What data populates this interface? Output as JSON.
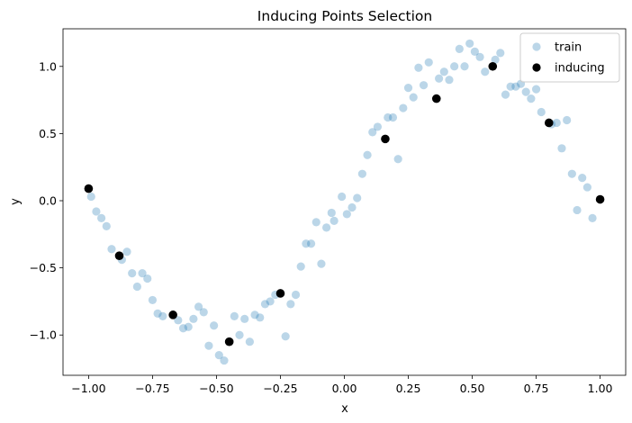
{
  "chart_data": {
    "type": "scatter",
    "title": "Inducing Points Selection",
    "xlabel": "x",
    "ylabel": "y",
    "xlim": [
      -1.1,
      1.1
    ],
    "ylim": [
      -1.3,
      1.28
    ],
    "x_ticks": [
      -1.0,
      -0.75,
      -0.5,
      -0.25,
      0.0,
      0.25,
      0.5,
      0.75,
      1.0
    ],
    "x_tick_labels": [
      "−1.00",
      "−0.75",
      "−0.50",
      "−0.25",
      "0.00",
      "0.25",
      "0.50",
      "0.75",
      "1.00"
    ],
    "y_ticks": [
      -1.0,
      -0.5,
      0.0,
      0.5,
      1.0
    ],
    "y_tick_labels": [
      "−1.0",
      "−0.5",
      "0.0",
      "0.5",
      "1.0"
    ],
    "grid": false,
    "legend_position": "top-right",
    "series": [
      {
        "name": "train",
        "color": "#1f77b4",
        "alpha": 0.3,
        "points": [
          [
            -0.99,
            0.03
          ],
          [
            -0.97,
            -0.08
          ],
          [
            -0.95,
            -0.13
          ],
          [
            -0.93,
            -0.19
          ],
          [
            -0.91,
            -0.36
          ],
          [
            -0.87,
            -0.44
          ],
          [
            -0.85,
            -0.38
          ],
          [
            -0.83,
            -0.54
          ],
          [
            -0.81,
            -0.64
          ],
          [
            -0.79,
            -0.54
          ],
          [
            -0.77,
            -0.58
          ],
          [
            -0.75,
            -0.74
          ],
          [
            -0.73,
            -0.84
          ],
          [
            -0.71,
            -0.86
          ],
          [
            -0.65,
            -0.89
          ],
          [
            -0.63,
            -0.95
          ],
          [
            -0.61,
            -0.94
          ],
          [
            -0.59,
            -0.88
          ],
          [
            -0.57,
            -0.79
          ],
          [
            -0.55,
            -0.83
          ],
          [
            -0.53,
            -1.08
          ],
          [
            -0.51,
            -0.93
          ],
          [
            -0.49,
            -1.15
          ],
          [
            -0.47,
            -1.19
          ],
          [
            -0.43,
            -0.86
          ],
          [
            -0.41,
            -1.0
          ],
          [
            -0.39,
            -0.88
          ],
          [
            -0.37,
            -1.05
          ],
          [
            -0.35,
            -0.85
          ],
          [
            -0.33,
            -0.87
          ],
          [
            -0.31,
            -0.77
          ],
          [
            -0.29,
            -0.75
          ],
          [
            -0.27,
            -0.7
          ],
          [
            -0.23,
            -1.01
          ],
          [
            -0.21,
            -0.77
          ],
          [
            -0.19,
            -0.7
          ],
          [
            -0.17,
            -0.49
          ],
          [
            -0.15,
            -0.32
          ],
          [
            -0.13,
            -0.32
          ],
          [
            -0.11,
            -0.16
          ],
          [
            -0.09,
            -0.47
          ],
          [
            -0.07,
            -0.2
          ],
          [
            -0.05,
            -0.09
          ],
          [
            -0.04,
            -0.15
          ],
          [
            -0.01,
            0.03
          ],
          [
            0.01,
            -0.1
          ],
          [
            0.03,
            -0.05
          ],
          [
            0.05,
            0.02
          ],
          [
            0.07,
            0.2
          ],
          [
            0.09,
            0.34
          ],
          [
            0.11,
            0.51
          ],
          [
            0.13,
            0.55
          ],
          [
            0.17,
            0.62
          ],
          [
            0.19,
            0.62
          ],
          [
            0.21,
            0.31
          ],
          [
            0.23,
            0.69
          ],
          [
            0.25,
            0.84
          ],
          [
            0.27,
            0.77
          ],
          [
            0.29,
            0.99
          ],
          [
            0.31,
            0.86
          ],
          [
            0.33,
            1.03
          ],
          [
            0.37,
            0.91
          ],
          [
            0.39,
            0.96
          ],
          [
            0.41,
            0.9
          ],
          [
            0.43,
            1.0
          ],
          [
            0.45,
            1.13
          ],
          [
            0.47,
            1.0
          ],
          [
            0.49,
            1.17
          ],
          [
            0.51,
            1.11
          ],
          [
            0.53,
            1.07
          ],
          [
            0.55,
            0.96
          ],
          [
            0.59,
            1.05
          ],
          [
            0.61,
            1.1
          ],
          [
            0.63,
            0.79
          ],
          [
            0.65,
            0.85
          ],
          [
            0.67,
            0.85
          ],
          [
            0.69,
            0.87
          ],
          [
            0.71,
            0.81
          ],
          [
            0.73,
            0.76
          ],
          [
            0.75,
            0.83
          ],
          [
            0.77,
            0.66
          ],
          [
            0.81,
            0.57
          ],
          [
            0.83,
            0.58
          ],
          [
            0.85,
            0.39
          ],
          [
            0.87,
            0.6
          ],
          [
            0.89,
            0.2
          ],
          [
            0.91,
            -0.07
          ],
          [
            0.93,
            0.17
          ],
          [
            0.95,
            0.1
          ],
          [
            0.97,
            -0.13
          ]
        ]
      },
      {
        "name": "inducing",
        "color": "#000000",
        "alpha": 1.0,
        "points": [
          [
            -1.0,
            0.09
          ],
          [
            -0.88,
            -0.41
          ],
          [
            -0.67,
            -0.85
          ],
          [
            -0.45,
            -1.05
          ],
          [
            -0.25,
            -0.69
          ],
          [
            0.16,
            0.46
          ],
          [
            0.36,
            0.76
          ],
          [
            0.58,
            1.0
          ],
          [
            0.8,
            0.58
          ],
          [
            1.0,
            0.01
          ]
        ]
      }
    ]
  }
}
